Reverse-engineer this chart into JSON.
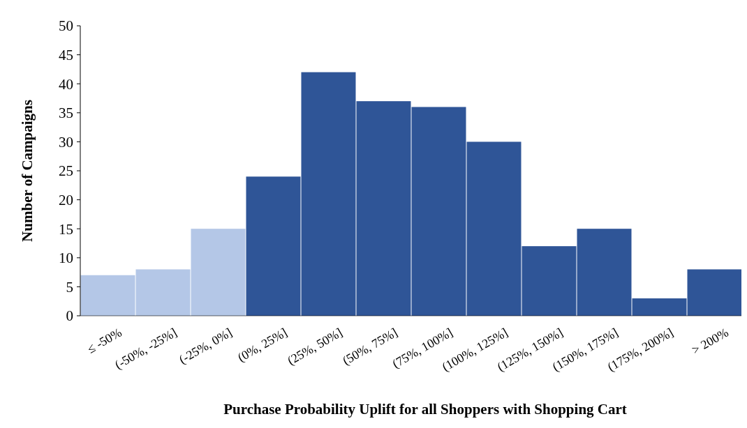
{
  "chart_data": {
    "type": "bar",
    "xlabel": "Purchase Probability Uplift  for all Shoppers with Shopping Cart",
    "ylabel": "Number of Campaigns",
    "categories": [
      "≤ -50%",
      "(-50%, -25%]",
      "(-25%, 0%]",
      "(0%, 25%]",
      "(25%, 50%]",
      "(50%, 75%]",
      "(75%, 100%]",
      "(100%, 125%]",
      "(125%, 150%]",
      "(150%, 175%]",
      "(175%, 200%]",
      "> 200%"
    ],
    "values": [
      7,
      8,
      15,
      24,
      42,
      37,
      36,
      30,
      12,
      15,
      3,
      8
    ],
    "colors": [
      "#b4c7e7",
      "#b4c7e7",
      "#b4c7e7",
      "#2f5597",
      "#2f5597",
      "#2f5597",
      "#2f5597",
      "#2f5597",
      "#2f5597",
      "#2f5597",
      "#2f5597",
      "#2f5597"
    ],
    "ylim": [
      0,
      50
    ],
    "yticks": [
      0,
      5,
      10,
      15,
      20,
      25,
      30,
      35,
      40,
      45,
      50
    ],
    "grid": false
  }
}
